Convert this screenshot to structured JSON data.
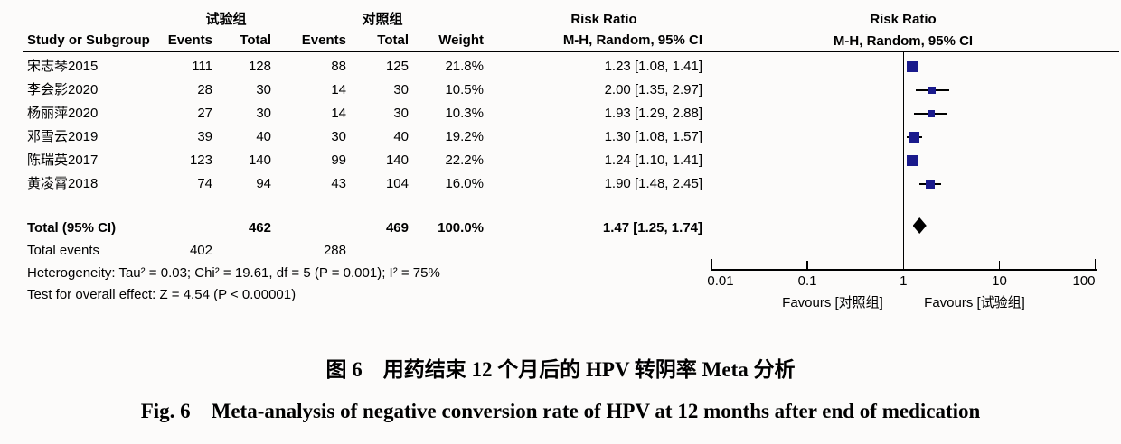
{
  "figure": {
    "background": "#FCFBFA"
  },
  "table": {
    "group_headers": {
      "experimental": "试验组",
      "control": "对照组"
    },
    "effect_header_line1": "Risk Ratio",
    "columns": {
      "study": "Study or Subgroup",
      "events_exp": "Events",
      "total_exp": "Total",
      "events_ctrl": "Events",
      "total_ctrl": "Total",
      "weight": "Weight",
      "ci": "M-H, Random, 95% CI"
    },
    "rows": [
      {
        "study": "宋志琴2015",
        "events_exp": "111",
        "total_exp": "128",
        "events_ctrl": "88",
        "total_ctrl": "125",
        "weight": "21.8%",
        "ci": "1.23 [1.08, 1.41]"
      },
      {
        "study": "李会影2020",
        "events_exp": "28",
        "total_exp": "30",
        "events_ctrl": "14",
        "total_ctrl": "30",
        "weight": "10.5%",
        "ci": "2.00 [1.35, 2.97]"
      },
      {
        "study": "杨丽萍2020",
        "events_exp": "27",
        "total_exp": "30",
        "events_ctrl": "14",
        "total_ctrl": "30",
        "weight": "10.3%",
        "ci": "1.93 [1.29, 2.88]"
      },
      {
        "study": "邓雪云2019",
        "events_exp": "39",
        "total_exp": "40",
        "events_ctrl": "30",
        "total_ctrl": "40",
        "weight": "19.2%",
        "ci": "1.30 [1.08, 1.57]"
      },
      {
        "study": "陈瑞英2017",
        "events_exp": "123",
        "total_exp": "140",
        "events_ctrl": "99",
        "total_ctrl": "140",
        "weight": "22.2%",
        "ci": "1.24 [1.10, 1.41]"
      },
      {
        "study": "黄凌霄2018",
        "events_exp": "74",
        "total_exp": "94",
        "events_ctrl": "43",
        "total_ctrl": "104",
        "weight": "16.0%",
        "ci": "1.90 [1.48, 2.45]"
      }
    ],
    "total_row": {
      "label": "Total (95% CI)",
      "total_exp": "462",
      "total_ctrl": "469",
      "weight": "100.0%",
      "ci": "1.47 [1.25, 1.74]"
    },
    "total_events": {
      "label": "Total events",
      "events_exp": "402",
      "events_ctrl": "288"
    },
    "heterogeneity": "Heterogeneity: Tau² = 0.03; Chi² = 19.61, df = 5 (P = 0.001); I² = 75%",
    "overall_effect": "Test for overall effect: Z = 4.54 (P < 0.00001)"
  },
  "plot": {
    "header_line1": "Risk Ratio",
    "header_line2": "M-H, Random, 95% CI",
    "favours_left": "Favours [对照组]",
    "favours_right": "Favours [试验组]",
    "marker_color": "#1A1A8C",
    "diamond_color": "#000000",
    "line_color": "#000000"
  },
  "chart_data": {
    "type": "forest",
    "effect_measure": "Risk Ratio, M-H, Random, 95% CI",
    "x_scale": "log",
    "x_ticks": [
      0.01,
      0.1,
      1,
      10,
      100
    ],
    "xlim": [
      0.01,
      100
    ],
    "no_effect_line": 1,
    "studies": [
      {
        "name": "宋志琴2015",
        "events_exp": 111,
        "total_exp": 128,
        "events_ctrl": 88,
        "total_ctrl": 125,
        "weight_pct": 21.8,
        "rr": 1.23,
        "ci_low": 1.08,
        "ci_high": 1.41
      },
      {
        "name": "李会影2020",
        "events_exp": 28,
        "total_exp": 30,
        "events_ctrl": 14,
        "total_ctrl": 30,
        "weight_pct": 10.5,
        "rr": 2.0,
        "ci_low": 1.35,
        "ci_high": 2.97
      },
      {
        "name": "杨丽萍2020",
        "events_exp": 27,
        "total_exp": 30,
        "events_ctrl": 14,
        "total_ctrl": 30,
        "weight_pct": 10.3,
        "rr": 1.93,
        "ci_low": 1.29,
        "ci_high": 2.88
      },
      {
        "name": "邓雪云2019",
        "events_exp": 39,
        "total_exp": 40,
        "events_ctrl": 30,
        "total_ctrl": 40,
        "weight_pct": 19.2,
        "rr": 1.3,
        "ci_low": 1.08,
        "ci_high": 1.57
      },
      {
        "name": "陈瑞英2017",
        "events_exp": 123,
        "total_exp": 140,
        "events_ctrl": 99,
        "total_ctrl": 140,
        "weight_pct": 22.2,
        "rr": 1.24,
        "ci_low": 1.1,
        "ci_high": 1.41
      },
      {
        "name": "黄凌霄2018",
        "events_exp": 74,
        "total_exp": 94,
        "events_ctrl": 43,
        "total_ctrl": 104,
        "weight_pct": 16.0,
        "rr": 1.9,
        "ci_low": 1.48,
        "ci_high": 2.45
      }
    ],
    "total": {
      "total_exp": 462,
      "total_ctrl": 469,
      "events_exp": 402,
      "events_ctrl": 288,
      "weight_pct": 100.0,
      "rr": 1.47,
      "ci_low": 1.25,
      "ci_high": 1.74
    },
    "heterogeneity": {
      "tau2": 0.03,
      "chi2": 19.61,
      "df": 5,
      "p": 0.001,
      "i2_pct": 75
    },
    "overall_effect": {
      "z": 4.54,
      "p": "< 0.00001"
    }
  },
  "caption": {
    "line1": "图 6　用药结束 12 个月后的 HPV 转阴率 Meta 分析",
    "line2": "Fig. 6　Meta-analysis of negative conversion rate of HPV at 12 months after end of medication"
  }
}
